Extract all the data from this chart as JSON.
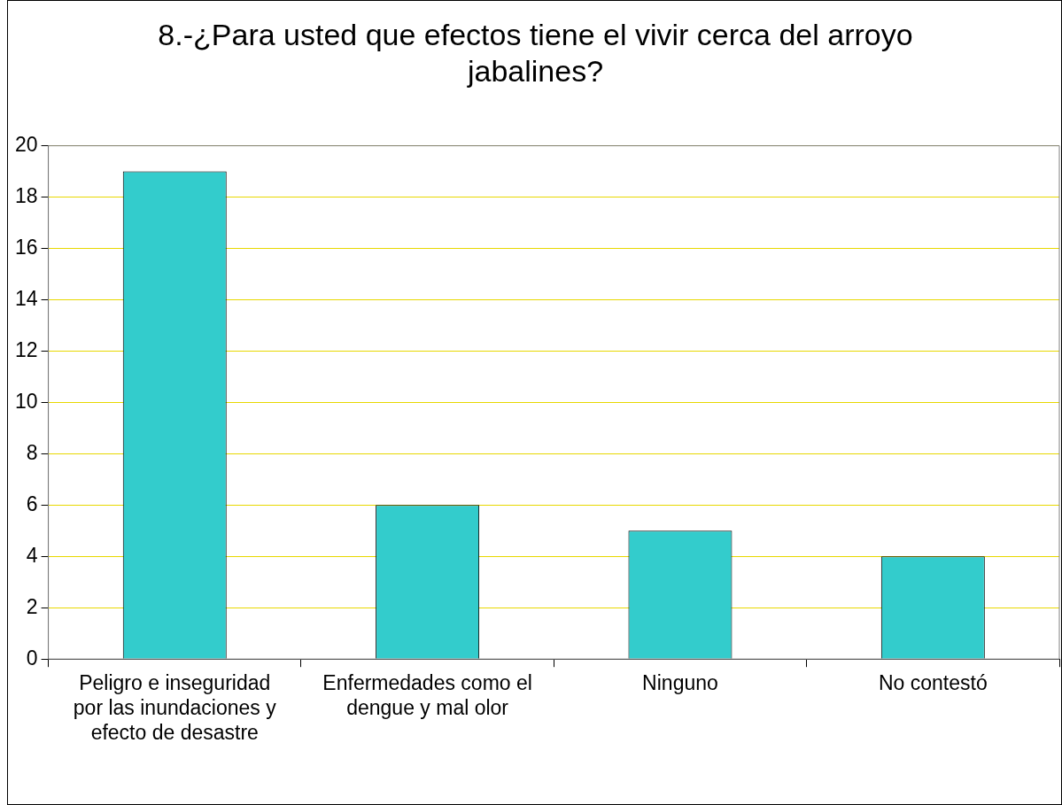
{
  "chart_data": {
    "type": "bar",
    "title": "8.-¿Para usted que efectos tiene el vivir cerca del arroyo jabalines?",
    "categories": [
      "Peligro e inseguridad por las inundaciones y efecto de desastre",
      "Enfermedades como el dengue y mal olor",
      "Ninguno",
      "No contestó"
    ],
    "values": [
      19,
      6,
      5,
      4
    ],
    "color": "#33cccc",
    "ylim": [
      0,
      20
    ],
    "yticks": [
      0,
      2,
      4,
      6,
      8,
      10,
      12,
      14,
      16,
      18,
      20
    ],
    "grid": "y",
    "legend": false
  }
}
